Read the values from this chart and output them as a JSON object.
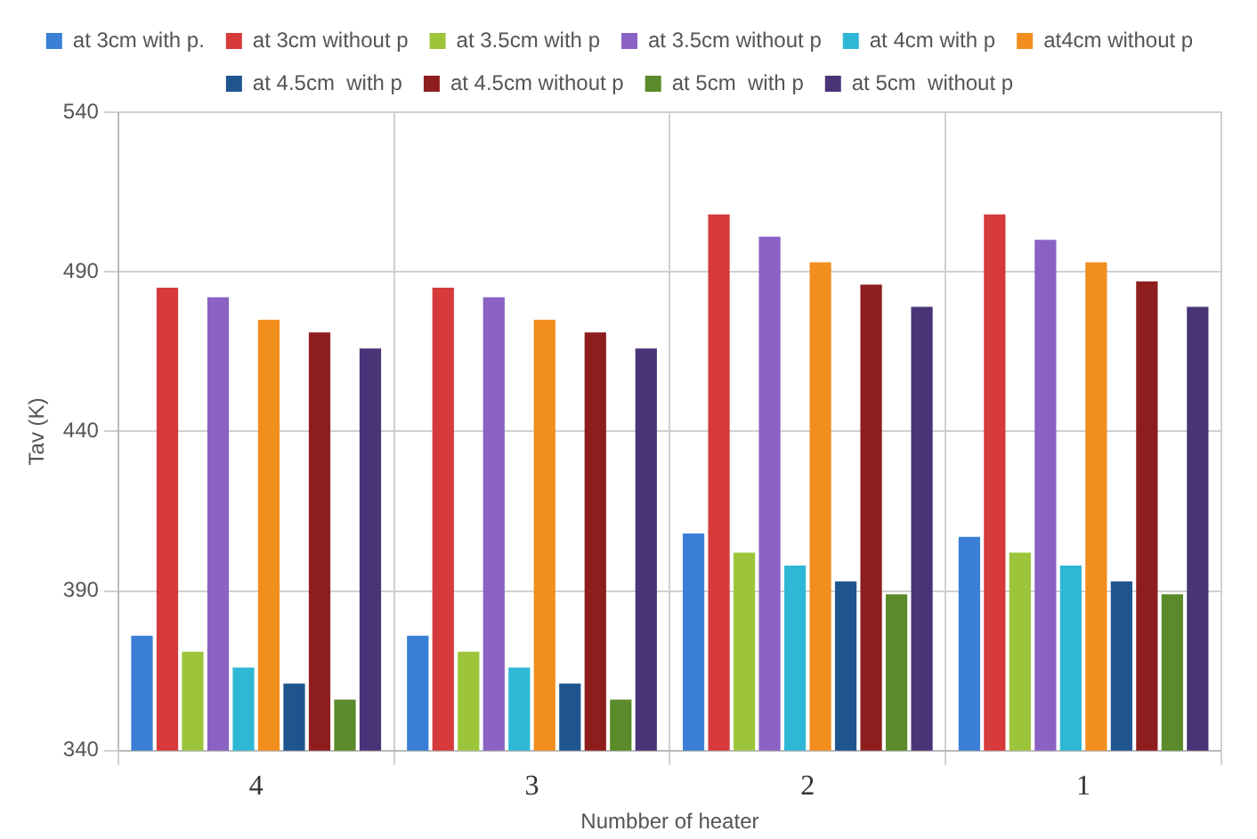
{
  "chart_data": {
    "type": "bar",
    "xlabel": "Numbber of heater",
    "ylabel": "Tav (K)",
    "categories": [
      "4",
      "3",
      "2",
      "1"
    ],
    "series": [
      {
        "name": "at 3cm with p.",
        "color": "#3a7fd5",
        "values": [
          376,
          376,
          408,
          407
        ]
      },
      {
        "name": "at 3cm without p",
        "color": "#d63a3a",
        "values": [
          485,
          485,
          508,
          508
        ]
      },
      {
        "name": "at 3.5cm with p",
        "color": "#9cc53c",
        "values": [
          371,
          371,
          402,
          402
        ]
      },
      {
        "name": "at 3.5cm without p",
        "color": "#8a62c4",
        "values": [
          482,
          482,
          501,
          500
        ]
      },
      {
        "name": "at 4cm with p",
        "color": "#2fb8d6",
        "values": [
          366,
          366,
          398,
          398
        ]
      },
      {
        "name": "at4cm without p",
        "color": "#f28e1e",
        "values": [
          475,
          475,
          493,
          493
        ]
      },
      {
        "name": "at 4.5cm  with p",
        "color": "#1f558f",
        "values": [
          361,
          361,
          393,
          393
        ]
      },
      {
        "name": "at 4.5cm without p",
        "color": "#8e1e1e",
        "values": [
          471,
          471,
          486,
          487
        ]
      },
      {
        "name": "at 5cm  with p",
        "color": "#5a8a2a",
        "values": [
          356,
          356,
          389,
          389
        ]
      },
      {
        "name": "at 5cm  without p",
        "color": "#4a3478",
        "values": [
          466,
          466,
          479,
          479
        ]
      }
    ],
    "ylim": [
      340,
      540
    ],
    "yticks": [
      340,
      390,
      440,
      490,
      540
    ],
    "grid": true,
    "legend": "top"
  }
}
